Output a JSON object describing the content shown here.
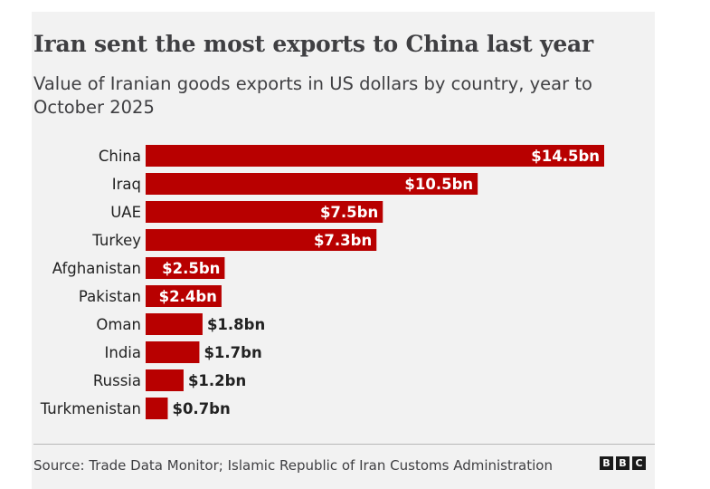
{
  "chart_data": {
    "type": "bar",
    "orientation": "horizontal",
    "title": "Iran sent the most exports to China last year",
    "subtitle": "Value of Iranian goods exports in US dollars by country, year to October 2025",
    "categories": [
      "China",
      "Iraq",
      "UAE",
      "Turkey",
      "Afghanistan",
      "Pakistan",
      "Oman",
      "India",
      "Russia",
      "Turkmenistan"
    ],
    "values": [
      14.5,
      10.5,
      7.5,
      7.3,
      2.5,
      2.4,
      1.8,
      1.7,
      1.2,
      0.7
    ],
    "data_labels": [
      "$14.5bn",
      "$10.5bn",
      "$7.5bn",
      "$7.3bn",
      "$2.5bn",
      "$2.4bn",
      "$1.8bn",
      "$1.7bn",
      "$1.2bn",
      "$0.7bn"
    ],
    "xlim": [
      0,
      14.5
    ],
    "grid": false,
    "bar_color": "#b80000",
    "source": "Source: Trade Data Monitor; Islamic Republic of Iran Customs Administration"
  },
  "logo": [
    "B",
    "B",
    "C"
  ]
}
